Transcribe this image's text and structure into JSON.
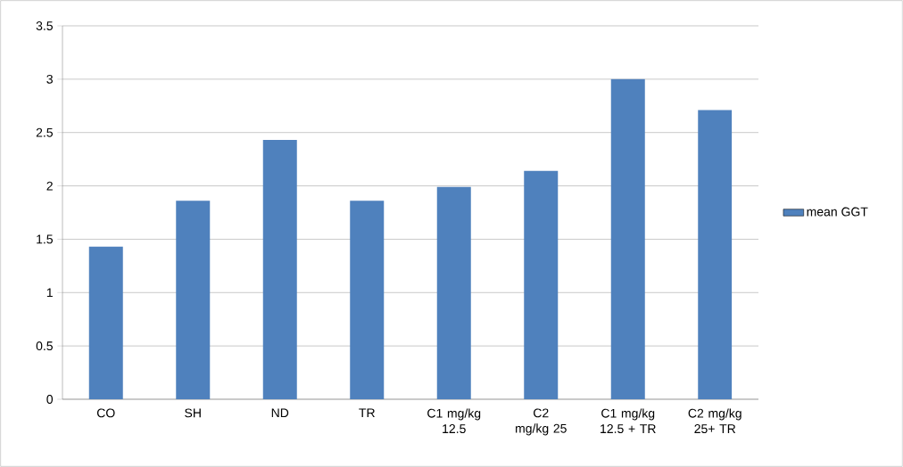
{
  "chart_data": {
    "type": "bar",
    "categories": [
      "CO",
      "SH",
      "ND",
      "TR",
      "C1 mg/kg 12.5",
      "C2 mg/kg 25",
      "C1 mg/kg 12.5 + TR",
      "C2 mg/kg 25+ TR"
    ],
    "series": [
      {
        "name": "mean GGT",
        "color": "#4f81bd",
        "values": [
          1.43,
          1.86,
          2.43,
          1.86,
          1.99,
          2.14,
          3.0,
          2.71
        ]
      }
    ],
    "ylim": [
      0,
      3.5
    ],
    "yticks": [
      0,
      0.5,
      1,
      1.5,
      2,
      2.5,
      3,
      3.5
    ],
    "grid": "y",
    "legend": "right"
  }
}
